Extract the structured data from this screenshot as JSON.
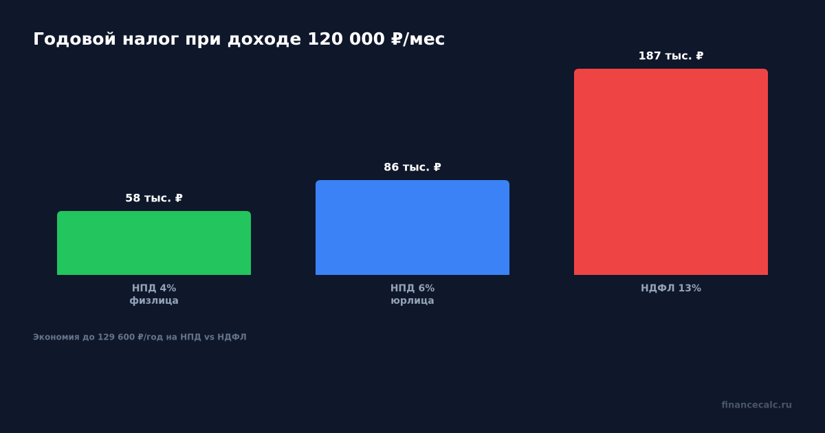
{
  "chart_data": {
    "type": "bar",
    "title": "Годовой налог при доходе 120 000 ₽/мес",
    "categories": [
      "НПД 4%",
      "НПД 6%",
      "НДФЛ 13%"
    ],
    "category_sublabels": [
      "физлица",
      "юрлица",
      null
    ],
    "values": [
      58,
      86,
      187
    ],
    "value_labels": [
      "58 тыс. ₽",
      "86 тыс. ₽",
      "187 тыс. ₽"
    ],
    "colors": [
      "#22c55e",
      "#3b82f6",
      "#ef4444"
    ],
    "footnote": "Экономия до 129 600 ₽/год на НПД vs НДФЛ",
    "watermark": "financecalc.ru"
  }
}
